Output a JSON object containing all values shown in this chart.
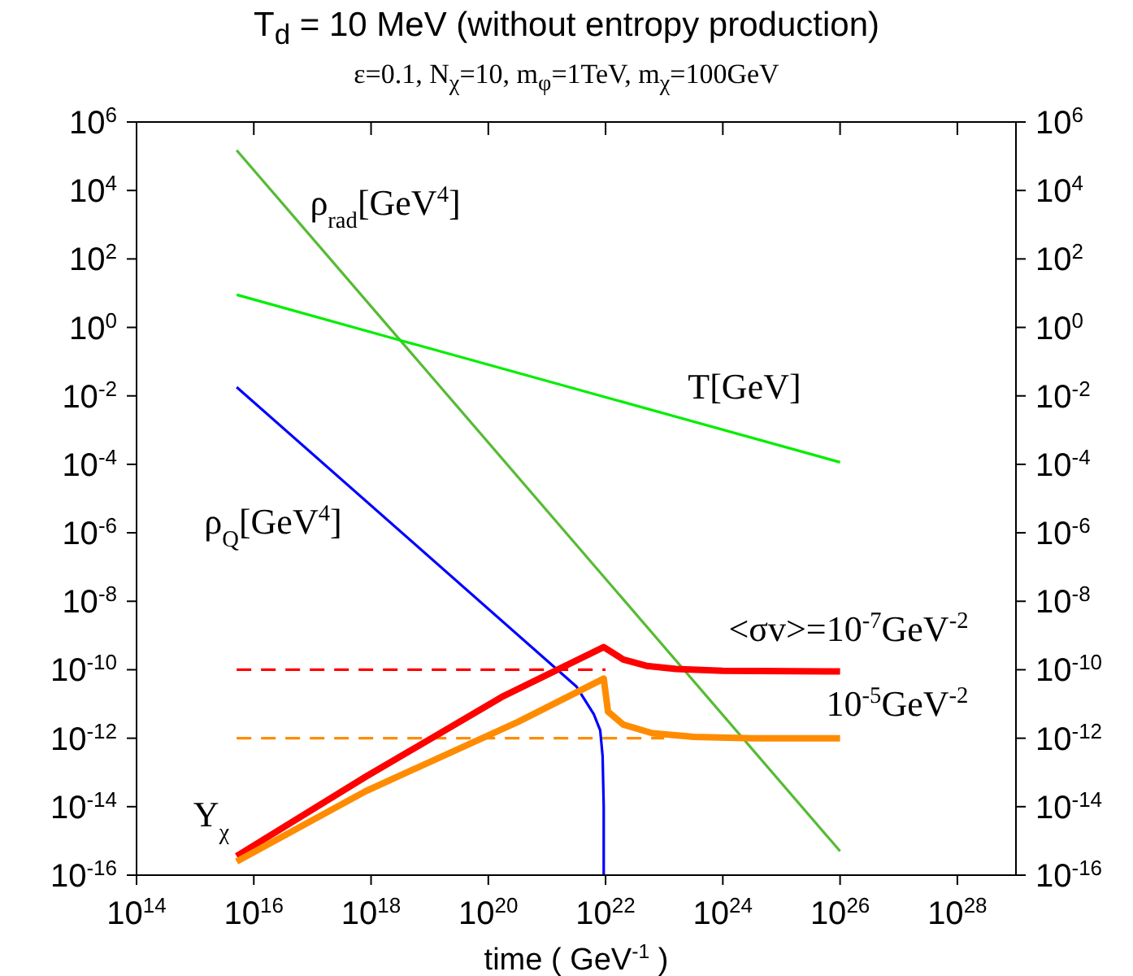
{
  "chart_data": {
    "type": "line",
    "title": "T$_{d}$ = 10 MeV (without entropy production)",
    "subtitle": "ε=0.1,   N$_{χ}$=10,   m$_{φ}$=1TeV,   m$_{χ}$=100GeV",
    "xlabel": "time ( GeV$^{-1}$ )",
    "log": "xy",
    "xlim": [
      100000000000000.0,
      1e+29
    ],
    "xticks": [
      {
        "value": 100000000000000.0,
        "label": "10$^{14}$"
      },
      {
        "value": 1e+16,
        "label": "10$^{16}$"
      },
      {
        "value": 1e+18,
        "label": "10$^{18}$"
      },
      {
        "value": 1e+20,
        "label": "10$^{20}$"
      },
      {
        "value": 1e+22,
        "label": "10$^{22}$"
      },
      {
        "value": 1e+24,
        "label": "10$^{24}$"
      },
      {
        "value": 1e+26,
        "label": "10$^{26}$"
      },
      {
        "value": 1e+28,
        "label": "10$^{28}$"
      }
    ],
    "ylim": [
      1e-16,
      1000000.0
    ],
    "yticks": [
      {
        "value": 1e-16,
        "label": "10$^{-16}$"
      },
      {
        "value": 1e-14,
        "label": "10$^{-14}$"
      },
      {
        "value": 1e-12,
        "label": "10$^{-12}$"
      },
      {
        "value": 1e-10,
        "label": "10$^{-10}$"
      },
      {
        "value": 1e-08,
        "label": "10$^{-8}$"
      },
      {
        "value": 1e-06,
        "label": "10$^{-6}$"
      },
      {
        "value": 0.0001,
        "label": "10$^{-4}$"
      },
      {
        "value": 0.01,
        "label": "10$^{-2}$"
      },
      {
        "value": 1,
        "label": "10$^{0}$"
      },
      {
        "value": 100.0,
        "label": "10$^{2}$"
      },
      {
        "value": 10000.0,
        "label": "10$^{4}$"
      },
      {
        "value": 1000000.0,
        "label": "10$^{6}$"
      }
    ],
    "series": [
      {
        "color": "#55bb33",
        "line_style": "solid",
        "x": [
          5100000000000000.0,
          1e+26
        ],
        "values": [
          150000.0,
          5e-16
        ]
      },
      {
        "color": "#00ee00",
        "line_style": "solid",
        "x": [
          5100000000000000.0,
          3e+18,
          7.2e+20,
          1e+26
        ],
        "values": [
          9,
          0.43,
          0.032,
          0.000115
        ]
      },
      {
        "color": "#0000ff",
        "line_style": "solid",
        "x": [
          5100000000000000.0,
          3.2e+21,
          6.3e+21,
          8.1e+21,
          8.9e+21,
          9.3e+21,
          9.3e+21
        ],
        "values": [
          0.018,
          3.2e-11,
          5e-12,
          1.7e-12,
          3e-13,
          1e-14,
          1e-16
        ]
      },
      {
        "color": "#ff0000",
        "line_style": "dashed",
        "x": [
          5100000000000000.0,
          1e+22
        ],
        "values": [
          1e-10,
          1e-10
        ]
      },
      {
        "color": "#ff8c00",
        "line_style": "dashed",
        "x": [
          5100000000000000.0,
          1e+23
        ],
        "values": [
          1e-12,
          1e-12
        ]
      },
      {
        "color": "#ff0000",
        "line_style": "solid",
        "x": [
          5100000000000000.0,
          8e+17,
          1.7e+20,
          9.3e+21,
          2e+22,
          5e+22,
          1.6e+23,
          1e+24,
          1e+26
        ],
        "values": [
          3.6e-16,
          7.4e-14,
          1.6e-11,
          4.6e-10,
          2e-10,
          1.3e-10,
          1.05e-10,
          9.3e-11,
          8.9e-11
        ]
      },
      {
        "color": "#ff8c00",
        "line_style": "solid",
        "x": [
          5100000000000000.0,
          8e+17,
          3.2e+20,
          9.3e+21,
          1.1e+22,
          2e+22,
          6.3e+22,
          3.2e+23,
          3.2e+24,
          1e+26
        ],
        "values": [
          2.5e-16,
          2.8e-14,
          3e-12,
          5.5e-11,
          6e-12,
          2.5e-12,
          1.4e-12,
          1.1e-12,
          1e-12,
          1e-12
        ]
      }
    ],
    "annotations": [
      "ρ$_{rad}$[GeV$^{4}$]",
      "T[GeV]",
      "ρ$_{Q}$[GeV$^{4}$]",
      "Y$_{χ}$",
      "<σv>=10$^{-7}$GeV$^{-2}$",
      "10$^{-5}$GeV$^{-2}$"
    ]
  }
}
